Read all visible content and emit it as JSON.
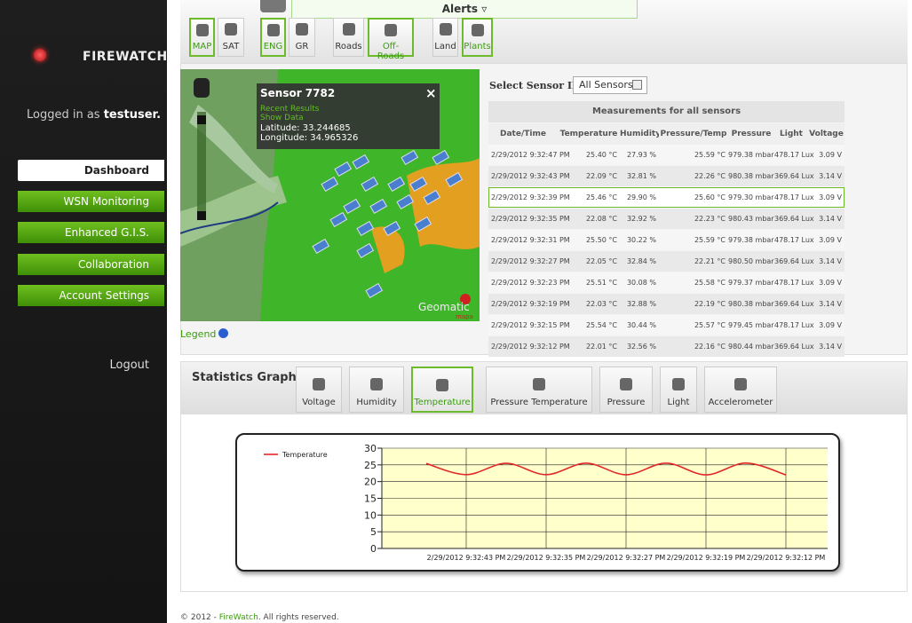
{
  "sidebar": {
    "brand": "FIREWATCH",
    "logged_in_prefix": "Logged in as",
    "user": "testuser.",
    "nav": [
      {
        "label": "Dashboard",
        "active": true
      },
      {
        "label": "WSN Monitoring",
        "active": false
      },
      {
        "label": "Enhanced G.I.S.",
        "active": false
      },
      {
        "label": "Collaboration",
        "active": false
      },
      {
        "label": "Account Settings",
        "active": false
      }
    ],
    "logout": "Logout"
  },
  "alerts": "Alerts",
  "map_toolbar": [
    {
      "label": "MAP",
      "active": true
    },
    {
      "label": "SAT",
      "active": false
    },
    {
      "label": "ENG",
      "active": true
    },
    {
      "label": "GR",
      "active": false
    },
    {
      "label": "Roads",
      "active": false
    },
    {
      "label": "Off-Roads",
      "active": true
    },
    {
      "label": "Land",
      "active": false
    },
    {
      "label": "Plants",
      "active": true
    }
  ],
  "map": {
    "popup": {
      "title": "Sensor 7782",
      "close": "×",
      "links": [
        "Recent Results",
        "Show Data"
      ],
      "latitude": "Latitude: 33.244685",
      "longitude": "Longitude: 34.965326"
    },
    "brand": "Geomatic",
    "brand_sub": "mapa",
    "legend": "Legend"
  },
  "sensor_select": {
    "label": "Select Sensor ID",
    "value": "All Sensors"
  },
  "table": {
    "title": "Measurements for all sensors",
    "selected_row": 2,
    "columns": [
      "Date/Time",
      "Temperature",
      "Humidity",
      "Pressure/Temp",
      "Pressure",
      "Light",
      "Voltage"
    ],
    "rows": [
      [
        "2/29/2012 9:32:47 PM",
        "25.40 °C",
        "27.93 %",
        "25.59 °C",
        "979.38 mbar",
        "478.17 Lux",
        "3.09 V"
      ],
      [
        "2/29/2012 9:32:43 PM",
        "22.09 °C",
        "32.81 %",
        "22.26 °C",
        "980.38 mbar",
        "369.64 Lux",
        "3.14 V"
      ],
      [
        "2/29/2012 9:32:39 PM",
        "25.46 °C",
        "29.90 %",
        "25.60 °C",
        "979.30 mbar",
        "478.17 Lux",
        "3.09 V"
      ],
      [
        "2/29/2012 9:32:35 PM",
        "22.08 °C",
        "32.92 %",
        "22.23 °C",
        "980.43 mbar",
        "369.64 Lux",
        "3.14 V"
      ],
      [
        "2/29/2012 9:32:31 PM",
        "25.50 °C",
        "30.22 %",
        "25.59 °C",
        "979.38 mbar",
        "478.17 Lux",
        "3.09 V"
      ],
      [
        "2/29/2012 9:32:27 PM",
        "22.05 °C",
        "32.84 %",
        "22.21 °C",
        "980.50 mbar",
        "369.64 Lux",
        "3.14 V"
      ],
      [
        "2/29/2012 9:32:23 PM",
        "25.51 °C",
        "30.08 %",
        "25.58 °C",
        "979.37 mbar",
        "478.17 Lux",
        "3.09 V"
      ],
      [
        "2/29/2012 9:32:19 PM",
        "22.03 °C",
        "32.88 %",
        "22.19 °C",
        "980.38 mbar",
        "369.64 Lux",
        "3.14 V"
      ],
      [
        "2/29/2012 9:32:15 PM",
        "25.54 °C",
        "30.44 %",
        "25.57 °C",
        "979.45 mbar",
        "478.17 Lux",
        "3.09 V"
      ],
      [
        "2/29/2012 9:32:12 PM",
        "22.01 °C",
        "32.56 %",
        "22.16 °C",
        "980.44 mbar",
        "369.64 Lux",
        "3.14 V"
      ]
    ]
  },
  "statistics": {
    "title": "Statistics Graph",
    "tabs": [
      {
        "label": "Voltage",
        "active": false
      },
      {
        "label": "Humidity",
        "active": false
      },
      {
        "label": "Temperature",
        "active": true
      },
      {
        "label": "Pressure Temperature",
        "active": false
      },
      {
        "label": "Pressure",
        "active": false
      },
      {
        "label": "Light",
        "active": false
      },
      {
        "label": "Accelerometer",
        "active": false
      }
    ]
  },
  "chart_data": {
    "type": "line",
    "categories": [
      null,
      "2/29/2012 9:32:43 PM",
      null,
      "2/29/2012 9:32:35 PM",
      null,
      "2/29/2012 9:32:27 PM",
      null,
      "2/29/2012 9:32:19 PM",
      null,
      "2/29/2012 9:32:12 PM"
    ],
    "series": [
      {
        "name": "Temperature",
        "color": "#e02828",
        "values": [
          25.4,
          22.09,
          25.46,
          22.08,
          25.5,
          22.05,
          25.51,
          22.03,
          25.54,
          22.01
        ]
      }
    ],
    "ylim": [
      0,
      30
    ],
    "yticks": [
      0,
      5,
      10,
      15,
      20,
      25,
      30
    ],
    "grid": true
  },
  "footer": {
    "prefix": "© 2012 - ",
    "link": "FireWatch",
    "suffix": ". All rights reserved."
  }
}
